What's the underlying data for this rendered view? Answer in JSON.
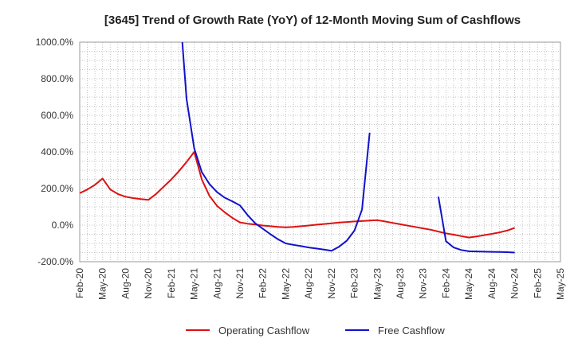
{
  "chart_data": {
    "type": "line",
    "title": "[3645]  Trend of Growth Rate (YoY) of 12-Month Moving Sum of Cashflows",
    "xlabel": "",
    "ylabel": "",
    "ylim": [
      -200,
      1000
    ],
    "yticks": [
      -200,
      0,
      200,
      400,
      600,
      800,
      1000
    ],
    "ytick_labels": [
      "-200.0%",
      "0.0%",
      "200.0%",
      "400.0%",
      "600.0%",
      "800.0%",
      "1000.0%"
    ],
    "xticks": [
      "Feb-20",
      "May-20",
      "Aug-20",
      "Nov-20",
      "Feb-21",
      "May-21",
      "Aug-21",
      "Nov-21",
      "Feb-22",
      "May-22",
      "Aug-22",
      "Nov-22",
      "Feb-23",
      "May-23",
      "Aug-23",
      "Nov-23",
      "Feb-24",
      "May-24",
      "Aug-24",
      "Nov-24",
      "Feb-25",
      "May-25"
    ],
    "x_start": "Feb-20",
    "x_end": "May-25",
    "grid": true,
    "legend_position": "bottom",
    "series": [
      {
        "name": "Operating Cashflow",
        "color": "#dd1111",
        "points": [
          [
            "Feb-20",
            175
          ],
          [
            "Mar-20",
            195
          ],
          [
            "Apr-20",
            220
          ],
          [
            "May-20",
            255
          ],
          [
            "Jun-20",
            195
          ],
          [
            "Jul-20",
            170
          ],
          [
            "Aug-20",
            155
          ],
          [
            "Sep-20",
            148
          ],
          [
            "Oct-20",
            142
          ],
          [
            "Nov-20",
            138
          ],
          [
            "Dec-20",
            170
          ],
          [
            "Jan-21",
            210
          ],
          [
            "Feb-21",
            250
          ],
          [
            "Mar-21",
            295
          ],
          [
            "Apr-21",
            345
          ],
          [
            "May-21",
            400
          ],
          [
            "Jun-21",
            250
          ],
          [
            "Jul-21",
            160
          ],
          [
            "Aug-21",
            105
          ],
          [
            "Sep-21",
            70
          ],
          [
            "Oct-21",
            40
          ],
          [
            "Nov-21",
            15
          ],
          [
            "Dec-21",
            8
          ],
          [
            "Jan-22",
            3
          ],
          [
            "Feb-22",
            -2
          ],
          [
            "Mar-22",
            -6
          ],
          [
            "Apr-22",
            -10
          ],
          [
            "May-22",
            -12
          ],
          [
            "Jun-22",
            -10
          ],
          [
            "Jul-22",
            -6
          ],
          [
            "Aug-22",
            -2
          ],
          [
            "Sep-22",
            2
          ],
          [
            "Oct-22",
            6
          ],
          [
            "Nov-22",
            10
          ],
          [
            "Dec-22",
            14
          ],
          [
            "Jan-23",
            17
          ],
          [
            "Feb-23",
            20
          ],
          [
            "Mar-23",
            22
          ],
          [
            "Apr-23",
            25
          ],
          [
            "May-23",
            27
          ],
          [
            "Jun-23",
            20
          ],
          [
            "Jul-23",
            12
          ],
          [
            "Aug-23",
            5
          ],
          [
            "Sep-23",
            -3
          ],
          [
            "Oct-23",
            -10
          ],
          [
            "Nov-23",
            -18
          ],
          [
            "Dec-23",
            -25
          ],
          [
            "Jan-24",
            -35
          ],
          [
            "Feb-24",
            -45
          ],
          [
            "Mar-24",
            -52
          ],
          [
            "Apr-24",
            -60
          ],
          [
            "May-24",
            -68
          ],
          [
            "Jun-24",
            -62
          ],
          [
            "Jul-24",
            -55
          ],
          [
            "Aug-24",
            -48
          ],
          [
            "Sep-24",
            -40
          ],
          [
            "Oct-24",
            -30
          ],
          [
            "Nov-24",
            -15
          ]
        ]
      },
      {
        "name": "Free Cashflow",
        "color": "#1111cc",
        "segments": [
          [
            [
              "Mar-21",
              1250
            ],
            [
              "Apr-21",
              690
            ],
            [
              "May-21",
              420
            ],
            [
              "Jun-21",
              290
            ],
            [
              "Jul-21",
              225
            ],
            [
              "Aug-21",
              180
            ],
            [
              "Sep-21",
              150
            ],
            [
              "Oct-21",
              130
            ],
            [
              "Nov-21",
              108
            ],
            [
              "Dec-21",
              55
            ],
            [
              "Jan-22",
              10
            ],
            [
              "Feb-22",
              -20
            ],
            [
              "Mar-22",
              -50
            ],
            [
              "Apr-22",
              -78
            ],
            [
              "May-22",
              -100
            ],
            [
              "Jun-22",
              -108
            ],
            [
              "Jul-22",
              -115
            ],
            [
              "Aug-22",
              -122
            ],
            [
              "Sep-22",
              -128
            ],
            [
              "Oct-22",
              -134
            ],
            [
              "Nov-22",
              -140
            ],
            [
              "Dec-22",
              -118
            ],
            [
              "Jan-23",
              -85
            ],
            [
              "Feb-23",
              -30
            ],
            [
              "Mar-23",
              85
            ],
            [
              "Apr-23",
              505
            ]
          ],
          [
            [
              "Jan-24",
              155
            ],
            [
              "Feb-24",
              -88
            ],
            [
              "Mar-24",
              -122
            ],
            [
              "Apr-24",
              -136
            ],
            [
              "May-24",
              -143
            ],
            [
              "Jun-24",
              -144
            ],
            [
              "Jul-24",
              -145
            ],
            [
              "Aug-24",
              -146
            ],
            [
              "Sep-24",
              -147
            ],
            [
              "Oct-24",
              -148
            ],
            [
              "Nov-24",
              -150
            ]
          ]
        ]
      }
    ]
  }
}
